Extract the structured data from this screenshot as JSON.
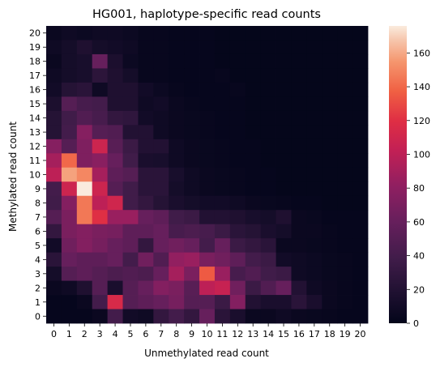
{
  "chart_data": {
    "type": "heatmap",
    "title": "HG001, haplotype-specific read counts",
    "xlabel": "Unmethylated read count",
    "ylabel": "Methylated read count",
    "x_categories": [
      "0",
      "1",
      "2",
      "3",
      "4",
      "5",
      "6",
      "7",
      "8",
      "9",
      "10",
      "11",
      "12",
      "13",
      "14",
      "15",
      "16",
      "17",
      "18",
      "19",
      "20"
    ],
    "y_categories": [
      "0",
      "1",
      "2",
      "3",
      "4",
      "5",
      "6",
      "7",
      "8",
      "9",
      "10",
      "11",
      "12",
      "13",
      "14",
      "15",
      "16",
      "17",
      "18",
      "19",
      "20"
    ],
    "y_order": "descending",
    "colormap": "rocket",
    "colorbar": {
      "min": 0,
      "max": 176,
      "ticks": [
        0,
        20,
        40,
        60,
        80,
        100,
        120,
        140,
        160
      ]
    },
    "values_by_row_from_top": [
      [
        5,
        8,
        6,
        8,
        8,
        6,
        3,
        3,
        2,
        2,
        2,
        1,
        1,
        1,
        1,
        1,
        1,
        1,
        1,
        1,
        1
      ],
      [
        8,
        12,
        18,
        12,
        10,
        8,
        3,
        3,
        2,
        2,
        2,
        1,
        1,
        1,
        1,
        1,
        1,
        1,
        1,
        1,
        1
      ],
      [
        5,
        12,
        14,
        60,
        16,
        6,
        3,
        3,
        2,
        2,
        2,
        1,
        1,
        1,
        1,
        1,
        1,
        1,
        1,
        1,
        1
      ],
      [
        8,
        12,
        14,
        26,
        18,
        12,
        3,
        3,
        2,
        2,
        2,
        3,
        1,
        1,
        1,
        1,
        1,
        1,
        1,
        1,
        1
      ],
      [
        10,
        22,
        25,
        8,
        18,
        18,
        10,
        6,
        3,
        2,
        2,
        2,
        3,
        1,
        1,
        1,
        1,
        1,
        1,
        1,
        1
      ],
      [
        16,
        50,
        42,
        40,
        18,
        18,
        8,
        10,
        5,
        3,
        2,
        2,
        2,
        1,
        1,
        1,
        1,
        1,
        1,
        1,
        1
      ],
      [
        22,
        38,
        48,
        42,
        30,
        28,
        10,
        8,
        5,
        4,
        3,
        2,
        2,
        1,
        1,
        1,
        1,
        1,
        1,
        1,
        1
      ],
      [
        22,
        40,
        76,
        50,
        48,
        20,
        20,
        8,
        5,
        4,
        3,
        2,
        2,
        1,
        1,
        1,
        1,
        1,
        1,
        1,
        1
      ],
      [
        76,
        50,
        72,
        108,
        52,
        35,
        20,
        20,
        8,
        5,
        4,
        3,
        2,
        2,
        1,
        1,
        1,
        1,
        1,
        1,
        1
      ],
      [
        90,
        140,
        72,
        78,
        60,
        38,
        15,
        14,
        8,
        5,
        4,
        3,
        2,
        2,
        1,
        1,
        1,
        1,
        1,
        1,
        1
      ],
      [
        100,
        158,
        150,
        90,
        55,
        50,
        25,
        25,
        14,
        8,
        5,
        4,
        3,
        2,
        2,
        1,
        1,
        1,
        1,
        1,
        1
      ],
      [
        40,
        108,
        176,
        108,
        50,
        38,
        25,
        25,
        12,
        8,
        5,
        4,
        3,
        2,
        2,
        1,
        1,
        1,
        1,
        1,
        1
      ],
      [
        38,
        75,
        145,
        100,
        110,
        38,
        30,
        22,
        15,
        12,
        10,
        10,
        8,
        5,
        4,
        3,
        2,
        2,
        1,
        1,
        1
      ],
      [
        50,
        70,
        145,
        120,
        85,
        85,
        60,
        55,
        38,
        35,
        20,
        20,
        18,
        14,
        12,
        18,
        5,
        4,
        2,
        2,
        2
      ],
      [
        30,
        70,
        75,
        70,
        68,
        55,
        55,
        60,
        42,
        45,
        42,
        35,
        25,
        22,
        15,
        12,
        5,
        5,
        3,
        2,
        2
      ],
      [
        10,
        65,
        75,
        68,
        60,
        55,
        30,
        60,
        65,
        60,
        40,
        60,
        35,
        30,
        25,
        5,
        5,
        4,
        3,
        2,
        2
      ],
      [
        25,
        60,
        55,
        55,
        60,
        40,
        65,
        48,
        82,
        85,
        70,
        65,
        55,
        40,
        35,
        10,
        8,
        6,
        4,
        3,
        2
      ],
      [
        12,
        50,
        55,
        50,
        45,
        48,
        45,
        60,
        90,
        70,
        135,
        85,
        42,
        48,
        38,
        35,
        8,
        6,
        4,
        3,
        2
      ],
      [
        5,
        8,
        18,
        50,
        15,
        50,
        60,
        75,
        70,
        52,
        100,
        105,
        65,
        35,
        48,
        60,
        20,
        8,
        5,
        3,
        2
      ],
      [
        2,
        2,
        5,
        40,
        115,
        50,
        55,
        60,
        68,
        50,
        50,
        35,
        75,
        20,
        15,
        15,
        25,
        15,
        5,
        3,
        2
      ],
      [
        2,
        2,
        2,
        5,
        40,
        10,
        8,
        30,
        40,
        30,
        60,
        25,
        15,
        5,
        5,
        8,
        5,
        4,
        3,
        2,
        2
      ]
    ]
  }
}
